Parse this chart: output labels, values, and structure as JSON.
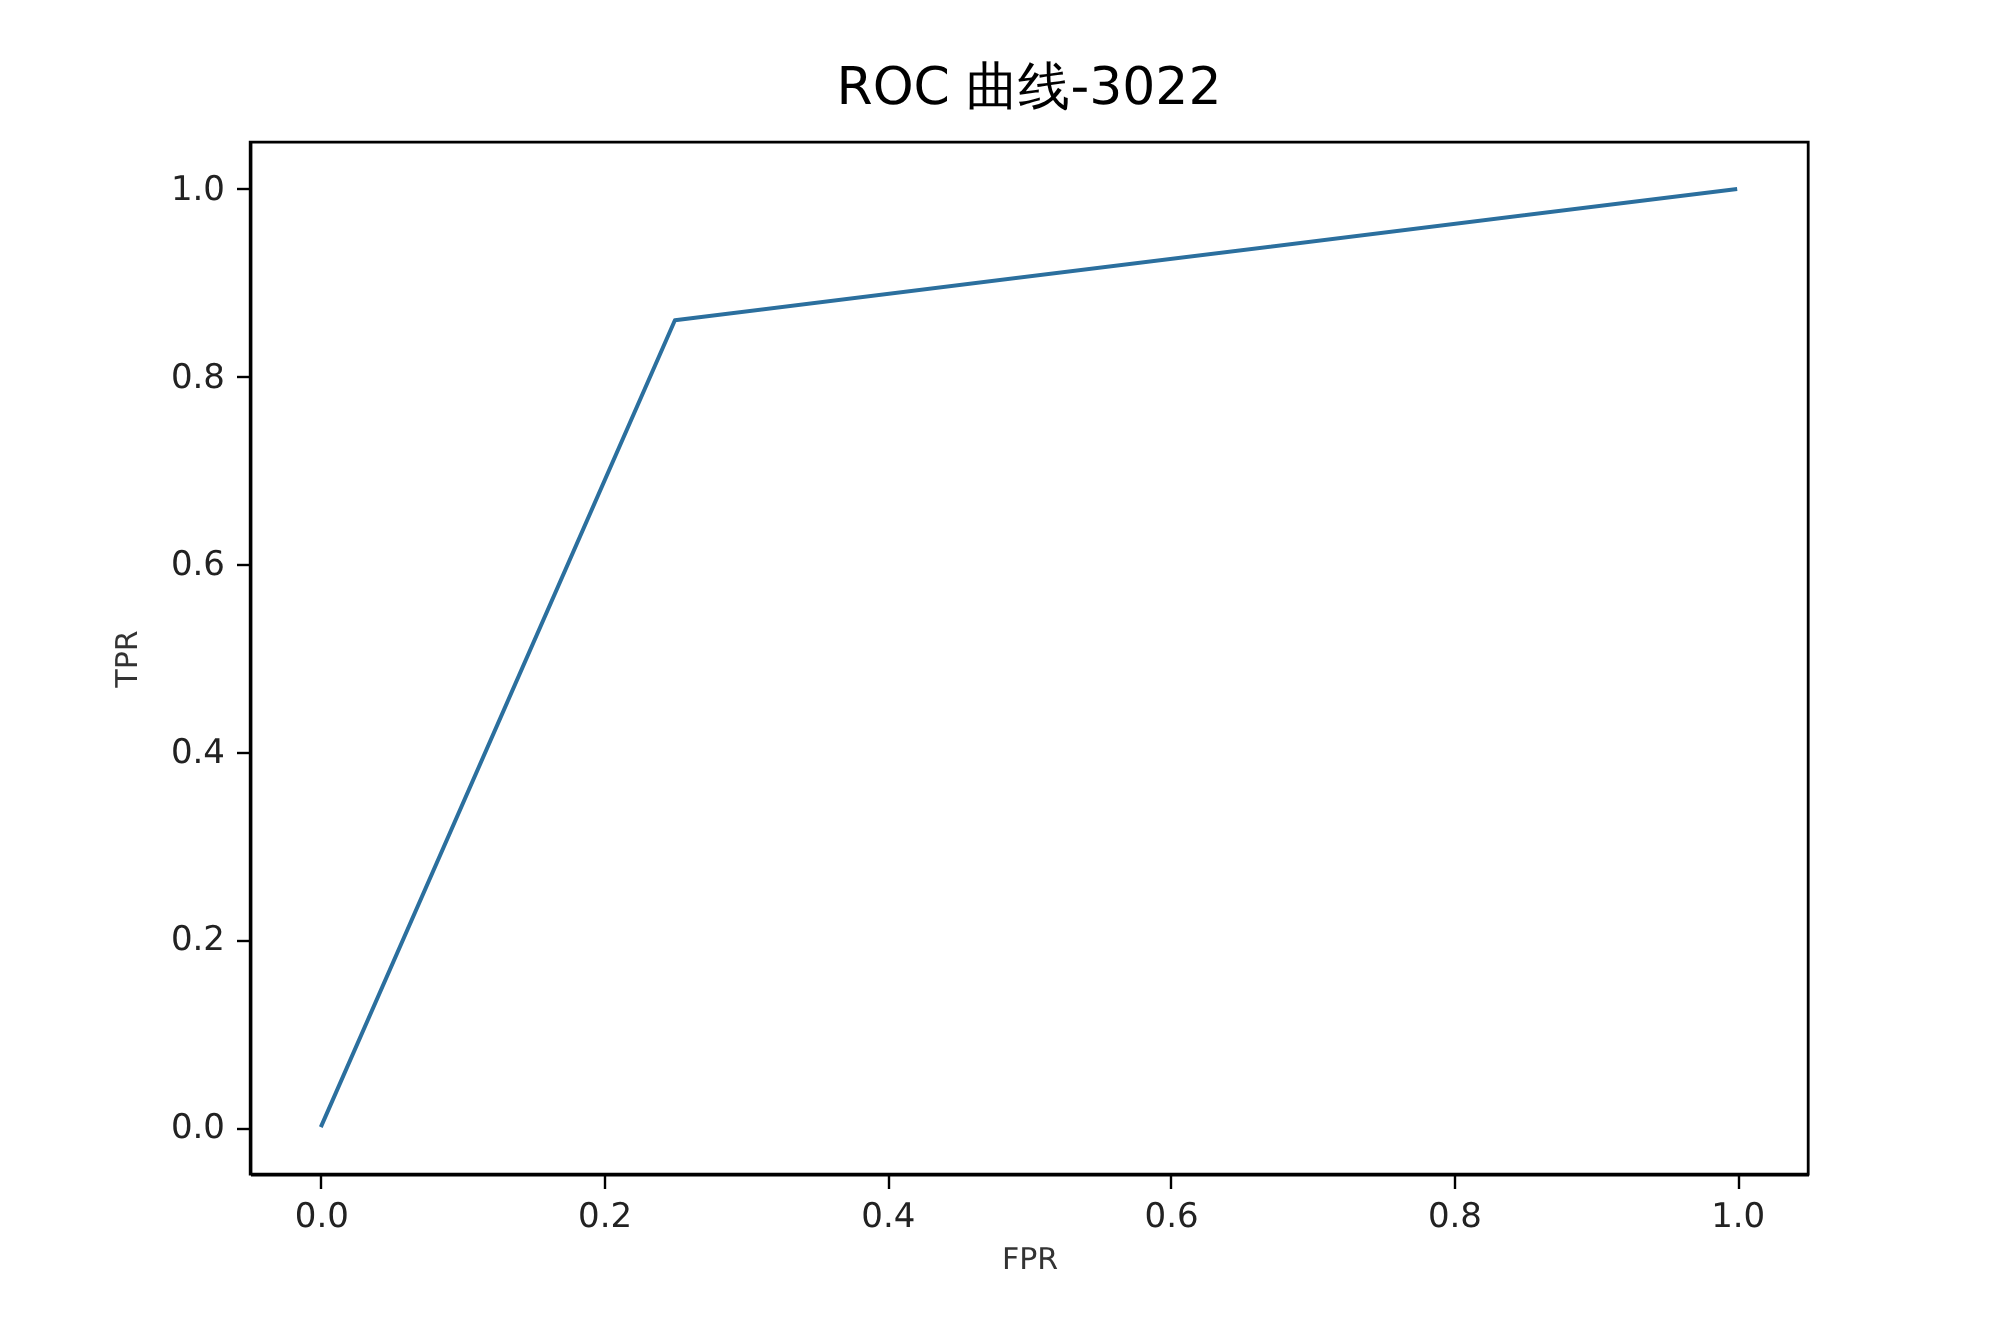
{
  "chart_data": {
    "type": "line",
    "title": "ROC 曲线-3022",
    "xlabel": "FPR",
    "ylabel": "TPR",
    "x": [
      0,
      0.25,
      1
    ],
    "series": [
      {
        "color": "#2b6f9e",
        "values": [
          0,
          0.86,
          1
        ]
      }
    ],
    "xlim": [
      -0.05,
      1.05
    ],
    "ylim": [
      -0.05,
      1.05
    ],
    "xticks": [
      {
        "value": 0,
        "label": "0.0"
      },
      0.2,
      0.4,
      0.6,
      0.8,
      {
        "value": 1,
        "label": "1.0"
      }
    ],
    "yticks": [
      {
        "value": 0,
        "label": "0.0"
      },
      0.2,
      0.4,
      0.6,
      0.8,
      {
        "value": 1,
        "label": "1.0"
      }
    ],
    "marker": "none",
    "line_style": "solid"
  }
}
